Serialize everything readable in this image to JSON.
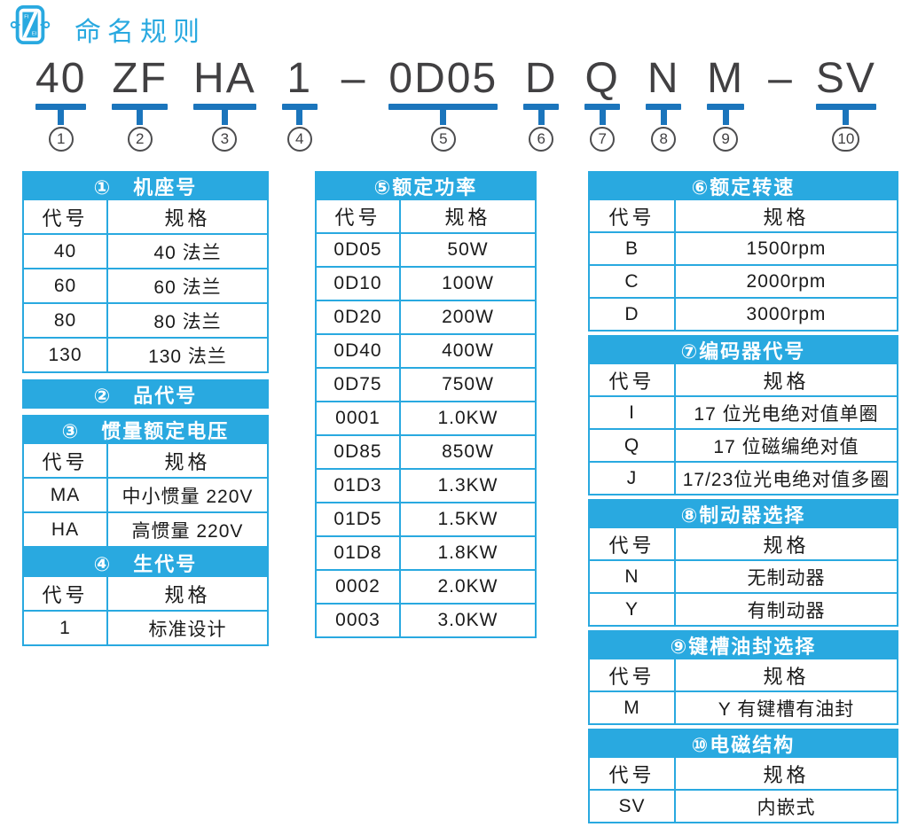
{
  "page": {
    "title": "命名规则"
  },
  "brand": {
    "letters_top": "FI",
    "letters_bottom": "EI"
  },
  "colors": {
    "accent_cyan": "#29a9e0",
    "underline_blue": "#1b75bc",
    "code_text": "#414042"
  },
  "code": {
    "dashes": [
      "–",
      "–"
    ],
    "segments": [
      {
        "text": "40",
        "num": "1"
      },
      {
        "text": "ZF",
        "num": "2"
      },
      {
        "text": "HA",
        "num": "3"
      },
      {
        "text": "1",
        "num": "4"
      },
      {
        "text": "0D05",
        "num": "5"
      },
      {
        "text": "D",
        "num": "6"
      },
      {
        "text": "Q",
        "num": "7"
      },
      {
        "text": "N",
        "num": "8"
      },
      {
        "text": "M",
        "num": "9"
      },
      {
        "text": "SV",
        "num": "10"
      }
    ]
  },
  "columns": {
    "left": {
      "sections": [
        {
          "title": "①　机座号",
          "headers": [
            "代号",
            "规格"
          ],
          "rows": [
            [
              "40",
              "40 法兰"
            ],
            [
              "60",
              "60 法兰"
            ],
            [
              "80",
              "80 法兰"
            ],
            [
              "130",
              "130 法兰"
            ]
          ]
        },
        {
          "title": "②　品代号",
          "headers": [],
          "rows": []
        },
        {
          "title": "③　惯量额定电压",
          "headers": [
            "代号",
            "规格"
          ],
          "rows": [
            [
              "MA",
              "中小惯量 220V"
            ],
            [
              "HA",
              "高惯量 220V"
            ]
          ]
        },
        {
          "title": "④　生代号",
          "headers": [
            "代号",
            "规格"
          ],
          "rows": [
            [
              "1",
              "标准设计"
            ]
          ]
        }
      ]
    },
    "middle": {
      "sections": [
        {
          "title": "⑤额定功率",
          "headers": [
            "代号",
            "规格"
          ],
          "rows": [
            [
              "0D05",
              "50W"
            ],
            [
              "0D10",
              "100W"
            ],
            [
              "0D20",
              "200W"
            ],
            [
              "0D40",
              "400W"
            ],
            [
              "0D75",
              "750W"
            ],
            [
              "0001",
              "1.0KW"
            ],
            [
              "0D85",
              "850W"
            ],
            [
              "01D3",
              "1.3KW"
            ],
            [
              "01D5",
              "1.5KW"
            ],
            [
              "01D8",
              "1.8KW"
            ],
            [
              "0002",
              "2.0KW"
            ],
            [
              "0003",
              "3.0KW"
            ]
          ]
        }
      ]
    },
    "right": {
      "sections": [
        {
          "title": "⑥额定转速",
          "headers": [
            "代号",
            "规格"
          ],
          "rows": [
            [
              "B",
              "1500rpm"
            ],
            [
              "C",
              "2000rpm"
            ],
            [
              "D",
              "3000rpm"
            ]
          ]
        },
        {
          "title": "⑦编码器代号",
          "headers": [
            "代号",
            "规格"
          ],
          "rows": [
            [
              "I",
              "17 位光电绝对值单圈"
            ],
            [
              "Q",
              "17 位磁编绝对值"
            ],
            [
              "J",
              "17/23位光电绝对值多圈"
            ]
          ]
        },
        {
          "title": "⑧制动器选择",
          "headers": [
            "代号",
            "规格"
          ],
          "rows": [
            [
              "N",
              "无制动器"
            ],
            [
              "Y",
              "有制动器"
            ]
          ]
        },
        {
          "title": "⑨键槽油封选择",
          "headers": [
            "代号",
            "规格"
          ],
          "rows": [
            [
              "M",
              "Y 有键槽有油封"
            ]
          ]
        },
        {
          "title": "⑩电磁结构",
          "headers": [
            "代号",
            "规格"
          ],
          "rows": [
            [
              "SV",
              "内嵌式"
            ]
          ]
        }
      ]
    }
  }
}
